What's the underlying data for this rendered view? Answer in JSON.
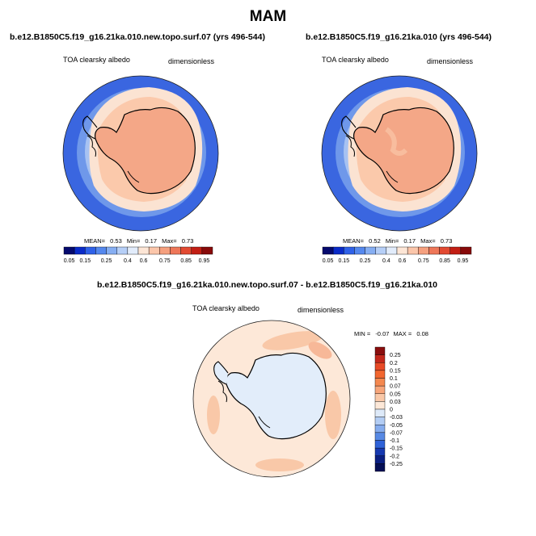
{
  "figure": {
    "title": "MAM"
  },
  "panels": [
    {
      "id": "case",
      "title": "b.e12.B1850C5.f19_g16.21ka.010.new.topo.surf.07 (yrs 496-544)",
      "variable": "TOA clearsky albedo",
      "units": "dimensionless",
      "stats": {
        "mean_label": "MEAN=",
        "mean": "0.53",
        "min_label": "Min=",
        "min": "0.17",
        "max_label": "Max=",
        "max": "0.73"
      }
    },
    {
      "id": "control",
      "title": "b.e12.B1850C5.f19_g16.21ka.010 (yrs 496-544)",
      "variable": "TOA clearsky albedo",
      "units": "dimensionless",
      "stats": {
        "mean_label": "MEAN=",
        "mean": "0.52",
        "min_label": "Min=",
        "min": "0.17",
        "max_label": "Max=",
        "max": "0.73"
      }
    }
  ],
  "diff_panel": {
    "title": "b.e12.B1850C5.f19_g16.21ka.010.new.topo.surf.07 - b.e12.B1850C5.f19_g16.21ka.010",
    "variable": "TOA clearsky albedo",
    "units": "dimensionless",
    "stats": {
      "min_label": "MIN =",
      "min": "-0.07",
      "max_label": "MAX =",
      "max": "0.08"
    }
  },
  "colorbars": {
    "absolute": {
      "labels": [
        "0.05",
        "0.15",
        "0.25",
        "0.4",
        "0.6",
        "0.75",
        "0.85",
        "0.95"
      ],
      "colors": [
        "#050a6e",
        "#0a2bc8",
        "#2f61e8",
        "#5588ee",
        "#86aef2",
        "#b6cff7",
        "#e2ecfb",
        "#fde6d6",
        "#fbc6aa",
        "#f5a07f",
        "#ee7759",
        "#e24a32",
        "#c21e14",
        "#880a0a"
      ]
    },
    "difference": {
      "labels": [
        "0.25",
        "0.2",
        "0.15",
        "0.1",
        "0.07",
        "0.05",
        "0.03",
        "0",
        "-0.03",
        "-0.05",
        "-0.07",
        "-0.1",
        "-0.15",
        "-0.2",
        "-0.25"
      ],
      "colors": [
        "#8a0e0e",
        "#c3271b",
        "#e84a26",
        "#f2672f",
        "#f4884f",
        "#f7a57a",
        "#f9c8a8",
        "#fde8d8",
        "#deeaf9",
        "#b3cdf4",
        "#85acee",
        "#5789e4",
        "#2f62d8",
        "#1639b0",
        "#0a1f82",
        "#050f55"
      ]
    }
  },
  "colors": {
    "ocean_deep": "#3a66e0",
    "ocean_mid": "#6f98ea",
    "ocean_light": "#a7c2f2",
    "sea_ice": "#fbe3d2",
    "ice_shelf": "#fbc9ab",
    "continent": "#f4a787",
    "diff_background": "#fde8d8",
    "diff_land": "#e2edfa",
    "diff_positive": "#f7b898"
  }
}
